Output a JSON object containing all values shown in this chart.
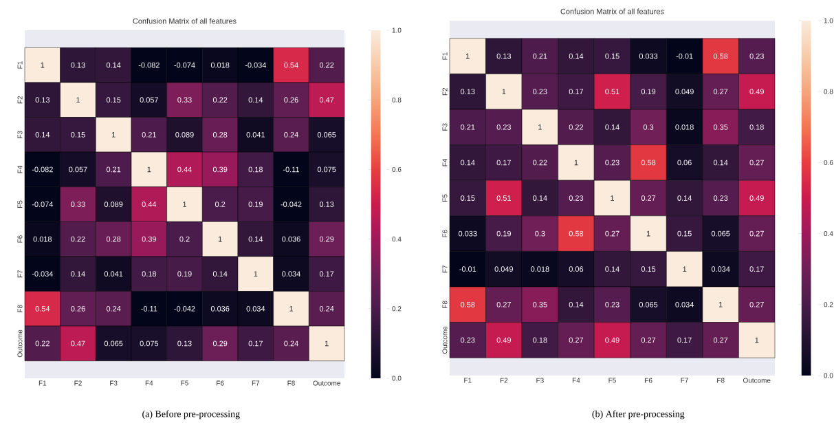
{
  "chart_data": [
    {
      "type": "heatmap",
      "title": "Confusion Matrix of all features",
      "categories": [
        "F1",
        "F2",
        "F3",
        "F4",
        "F5",
        "F6",
        "F7",
        "F8",
        "Outcome"
      ],
      "y_categories": [
        "F1",
        "F2",
        "F3",
        "F4",
        "F5",
        "F6",
        "F7",
        "F8",
        "Outcome"
      ],
      "cells": [
        [
          1,
          0.13,
          0.14,
          -0.082,
          -0.074,
          0.018,
          -0.034,
          0.54,
          0.22
        ],
        [
          0.13,
          1,
          0.15,
          0.057,
          0.33,
          0.22,
          0.14,
          0.26,
          0.47
        ],
        [
          0.14,
          0.15,
          1,
          0.21,
          0.089,
          0.28,
          0.041,
          0.24,
          0.065
        ],
        [
          -0.082,
          0.057,
          0.21,
          1,
          0.44,
          0.39,
          0.18,
          -0.11,
          0.075
        ],
        [
          -0.074,
          0.33,
          0.089,
          0.44,
          1,
          0.2,
          0.19,
          -0.042,
          0.13
        ],
        [
          0.018,
          0.22,
          0.28,
          0.39,
          0.2,
          1,
          0.14,
          0.036,
          0.29
        ],
        [
          -0.034,
          0.14,
          0.041,
          0.18,
          0.19,
          0.14,
          1,
          0.034,
          0.17
        ],
        [
          0.54,
          0.26,
          0.24,
          -0.11,
          -0.042,
          0.036,
          0.034,
          1,
          0.24
        ],
        [
          0.22,
          0.47,
          0.065,
          0.075,
          0.13,
          0.29,
          0.17,
          0.24,
          1
        ]
      ],
      "data_labels": true,
      "clim": [
        0,
        1
      ],
      "cticks": [
        {
          "value": 0,
          "label": "0.0"
        },
        {
          "value": 0.2,
          "label": "0.2"
        },
        {
          "value": 0.4,
          "label": "0.4"
        },
        {
          "value": 0.6,
          "label": "0.6"
        },
        {
          "value": 0.8,
          "label": "0.8"
        },
        {
          "value": 1,
          "label": "1.0"
        }
      ],
      "annotations": [
        "(a)  Before pre-processing"
      ]
    },
    {
      "type": "heatmap",
      "title": "Confusion Matrix of all features",
      "categories": [
        "F1",
        "F2",
        "F3",
        "F4",
        "F5",
        "F6",
        "F7",
        "F8",
        "Outcome"
      ],
      "y_categories": [
        "F1",
        "F2",
        "F3",
        "F4",
        "F5",
        "F6",
        "F7",
        "F8",
        "Outcome"
      ],
      "cells": [
        [
          1,
          0.13,
          0.21,
          0.14,
          0.15,
          0.033,
          -0.01,
          0.58,
          0.23
        ],
        [
          0.13,
          1,
          0.23,
          0.17,
          0.51,
          0.19,
          0.049,
          0.27,
          0.49
        ],
        [
          0.21,
          0.23,
          1,
          0.22,
          0.14,
          0.3,
          0.018,
          0.35,
          0.18
        ],
        [
          0.14,
          0.17,
          0.22,
          1,
          0.23,
          0.58,
          0.06,
          0.14,
          0.27
        ],
        [
          0.15,
          0.51,
          0.14,
          0.23,
          1,
          0.27,
          0.14,
          0.23,
          0.49
        ],
        [
          0.033,
          0.19,
          0.3,
          0.58,
          0.27,
          1,
          0.15,
          0.065,
          0.27
        ],
        [
          -0.01,
          0.049,
          0.018,
          0.06,
          0.14,
          0.15,
          1,
          0.034,
          0.17
        ],
        [
          0.58,
          0.27,
          0.35,
          0.14,
          0.23,
          0.065,
          0.034,
          1,
          0.27
        ],
        [
          0.23,
          0.49,
          0.18,
          0.27,
          0.49,
          0.27,
          0.17,
          0.27,
          1
        ]
      ],
      "data_labels": true,
      "clim": [
        0,
        1
      ],
      "cticks": [
        {
          "value": 0,
          "label": "0.0"
        },
        {
          "value": 0.2,
          "label": "0.2"
        },
        {
          "value": 0.4,
          "label": "0.4"
        },
        {
          "value": 0.6,
          "label": "0.6"
        },
        {
          "value": 0.8,
          "label": "0.8"
        },
        {
          "value": 1,
          "label": "1.0"
        }
      ],
      "annotations": [
        "(b) After pre-processing"
      ]
    }
  ]
}
